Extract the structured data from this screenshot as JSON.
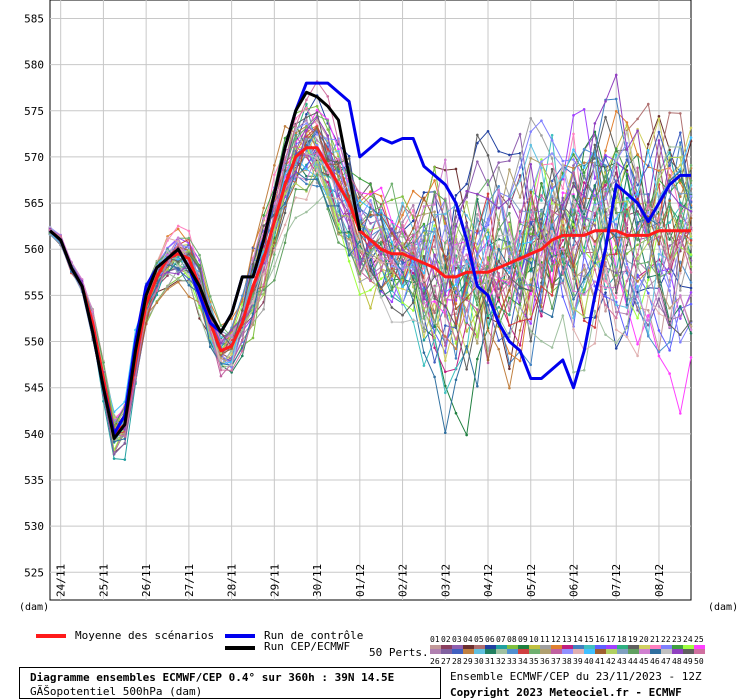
{
  "chart_data": {
    "type": "line",
    "y_unit_left": "(dam)",
    "x_unit_left": "(dam)",
    "x_unit_right": "(dam)",
    "ylim": [
      522,
      587
    ],
    "yticks": [
      525,
      530,
      535,
      540,
      545,
      550,
      555,
      560,
      565,
      570,
      575,
      580,
      585
    ],
    "xlim": [
      0,
      360
    ],
    "x_step_hours": 6,
    "xticks": [
      {
        "label": "24/11",
        "h": 6
      },
      {
        "label": "25/11",
        "h": 30
      },
      {
        "label": "26/11",
        "h": 54
      },
      {
        "label": "27/11",
        "h": 78
      },
      {
        "label": "28/11",
        "h": 102
      },
      {
        "label": "29/11",
        "h": 126
      },
      {
        "label": "30/11",
        "h": 150
      },
      {
        "label": "01/12",
        "h": 174
      },
      {
        "label": "02/12",
        "h": 198
      },
      {
        "label": "03/12",
        "h": 222
      },
      {
        "label": "04/12",
        "h": 246
      },
      {
        "label": "05/12",
        "h": 270
      },
      {
        "label": "06/12",
        "h": 294
      },
      {
        "label": "07/12",
        "h": 318
      },
      {
        "label": "08/12",
        "h": 342
      }
    ],
    "grid": true,
    "series": [
      {
        "name": "Moyenne des scénarios",
        "color": "#ff1a1a",
        "width": 3,
        "points": [
          [
            0,
            562
          ],
          [
            6,
            561
          ],
          [
            12,
            558
          ],
          [
            18,
            556
          ],
          [
            24,
            552
          ],
          [
            30,
            546
          ],
          [
            36,
            540
          ],
          [
            42,
            541
          ],
          [
            48,
            548
          ],
          [
            54,
            554
          ],
          [
            60,
            557
          ],
          [
            66,
            559
          ],
          [
            72,
            559.5
          ],
          [
            78,
            559
          ],
          [
            84,
            556
          ],
          [
            90,
            552
          ],
          [
            96,
            549
          ],
          [
            102,
            549.5
          ],
          [
            108,
            552
          ],
          [
            114,
            556
          ],
          [
            120,
            559
          ],
          [
            126,
            563
          ],
          [
            132,
            567
          ],
          [
            138,
            570
          ],
          [
            144,
            571
          ],
          [
            150,
            571
          ],
          [
            156,
            569
          ],
          [
            162,
            567
          ],
          [
            168,
            565
          ],
          [
            174,
            562
          ],
          [
            180,
            561
          ],
          [
            186,
            560
          ],
          [
            192,
            559.5
          ],
          [
            198,
            559.5
          ],
          [
            204,
            559
          ],
          [
            210,
            558.5
          ],
          [
            216,
            558
          ],
          [
            222,
            557
          ],
          [
            228,
            557
          ],
          [
            234,
            557.5
          ],
          [
            240,
            557.5
          ],
          [
            246,
            557.5
          ],
          [
            252,
            558
          ],
          [
            258,
            558.5
          ],
          [
            264,
            559
          ],
          [
            270,
            559.5
          ],
          [
            276,
            560
          ],
          [
            282,
            561
          ],
          [
            288,
            561.5
          ],
          [
            294,
            561.5
          ],
          [
            300,
            561.5
          ],
          [
            306,
            562
          ],
          [
            312,
            562
          ],
          [
            318,
            562
          ],
          [
            324,
            561.5
          ],
          [
            330,
            561.5
          ],
          [
            336,
            561.5
          ],
          [
            342,
            562
          ],
          [
            348,
            562
          ],
          [
            354,
            562
          ],
          [
            360,
            562
          ]
        ]
      },
      {
        "name": "Run de contrôle",
        "color": "#0000ee",
        "width": 3,
        "points": [
          [
            0,
            562
          ],
          [
            6,
            561
          ],
          [
            12,
            558
          ],
          [
            18,
            556
          ],
          [
            24,
            551
          ],
          [
            30,
            545
          ],
          [
            36,
            540
          ],
          [
            42,
            542
          ],
          [
            48,
            550
          ],
          [
            54,
            556
          ],
          [
            60,
            558
          ],
          [
            66,
            559
          ],
          [
            72,
            560
          ],
          [
            78,
            558
          ],
          [
            84,
            555
          ],
          [
            90,
            552
          ],
          [
            96,
            551
          ],
          [
            102,
            553
          ],
          [
            108,
            557
          ],
          [
            114,
            557
          ],
          [
            120,
            561
          ],
          [
            126,
            566
          ],
          [
            132,
            571
          ],
          [
            138,
            575
          ],
          [
            144,
            578
          ],
          [
            150,
            578
          ],
          [
            156,
            578
          ],
          [
            162,
            577
          ],
          [
            168,
            576
          ],
          [
            174,
            570
          ],
          [
            180,
            571
          ],
          [
            186,
            572
          ],
          [
            192,
            571.5
          ],
          [
            198,
            572
          ],
          [
            204,
            572
          ],
          [
            210,
            569
          ],
          [
            216,
            568
          ],
          [
            222,
            567
          ],
          [
            228,
            565
          ],
          [
            234,
            561
          ],
          [
            240,
            556
          ],
          [
            246,
            555
          ],
          [
            252,
            552
          ],
          [
            258,
            550
          ],
          [
            264,
            549
          ],
          [
            270,
            546
          ],
          [
            276,
            546
          ],
          [
            282,
            547
          ],
          [
            288,
            548
          ],
          [
            294,
            545
          ],
          [
            300,
            549
          ],
          [
            306,
            555
          ],
          [
            312,
            560
          ],
          [
            318,
            567
          ],
          [
            324,
            566
          ],
          [
            330,
            565
          ],
          [
            336,
            563
          ],
          [
            342,
            565
          ],
          [
            348,
            567
          ],
          [
            354,
            568
          ],
          [
            360,
            568
          ]
        ]
      },
      {
        "name": "Run CEP/ECMWF",
        "color": "#000000",
        "width": 3,
        "points": [
          [
            0,
            562
          ],
          [
            6,
            561
          ],
          [
            12,
            558
          ],
          [
            18,
            556
          ],
          [
            24,
            551
          ],
          [
            30,
            545
          ],
          [
            36,
            539.5
          ],
          [
            42,
            541
          ],
          [
            48,
            549
          ],
          [
            54,
            555
          ],
          [
            60,
            558
          ],
          [
            66,
            559
          ],
          [
            72,
            560
          ],
          [
            78,
            558
          ],
          [
            84,
            556
          ],
          [
            90,
            553
          ],
          [
            96,
            551
          ],
          [
            102,
            553
          ],
          [
            108,
            557
          ],
          [
            114,
            557
          ],
          [
            120,
            561
          ],
          [
            126,
            566
          ],
          [
            132,
            571
          ],
          [
            138,
            575
          ],
          [
            144,
            577
          ],
          [
            150,
            576.5
          ],
          [
            156,
            575.5
          ],
          [
            162,
            574
          ],
          [
            168,
            568
          ],
          [
            174,
            562
          ]
        ]
      }
    ],
    "ensemble_colors": [
      "#c49a9a",
      "#8b4060",
      "#9060b0",
      "#6b3030",
      "#b07070",
      "#2040a0",
      "#20a0a0",
      "#80c040",
      "#208040",
      "#c0c040",
      "#a0a0a0",
      "#e08030",
      "#c02080",
      "#4080c0",
      "#40c0c0",
      "#6060ff",
      "#a040ff",
      "#30b080",
      "#606060",
      "#d0d060",
      "#ff80c0",
      "#8080ff",
      "#40a040",
      "#a0ff40",
      "#ff40ff",
      "#b080b0",
      "#8060a0",
      "#4060c0",
      "#c08040",
      "#60c0e0",
      "#208060",
      "#a0c0a0",
      "#5090d0",
      "#d04040",
      "#70b070",
      "#b0a070",
      "#c060a0",
      "#9090ff",
      "#e0b0b0",
      "#40c0ff",
      "#a06030",
      "#b0d060",
      "#80a0c0",
      "#60a060",
      "#d080d0",
      "#3070a0",
      "#c0c0c0",
      "#9040c0",
      "#606060",
      "#d070a0"
    ],
    "legend": {
      "mean": "Moyenne des scénarios",
      "control": "Run de contrôle",
      "oper": "Run CEP/ECMWF",
      "perts_label": "50 Perts.",
      "pert_numbers": [
        "01",
        "02",
        "03",
        "04",
        "05",
        "06",
        "07",
        "08",
        "09",
        "10",
        "11",
        "12",
        "13",
        "14",
        "15",
        "16",
        "17",
        "18",
        "19",
        "20",
        "21",
        "22",
        "23",
        "24",
        "25",
        "26",
        "27",
        "28",
        "29",
        "30",
        "31",
        "32",
        "33",
        "34",
        "35",
        "36",
        "37",
        "38",
        "39",
        "40",
        "41",
        "42",
        "43",
        "44",
        "45",
        "46",
        "47",
        "48",
        "49",
        "50"
      ]
    }
  },
  "footer": {
    "title": "Diagramme ensembles ECMWF/CEP 0.4° sur 360h : 39N 14.5E",
    "subtitle": "GÃŠopotentiel 500hPa (dam)",
    "run_info": "Ensemble ECMWF/CEP du 23/11/2023 - 12Z",
    "copyright": "Copyright 2023 Meteociel.fr - ECMWF"
  }
}
